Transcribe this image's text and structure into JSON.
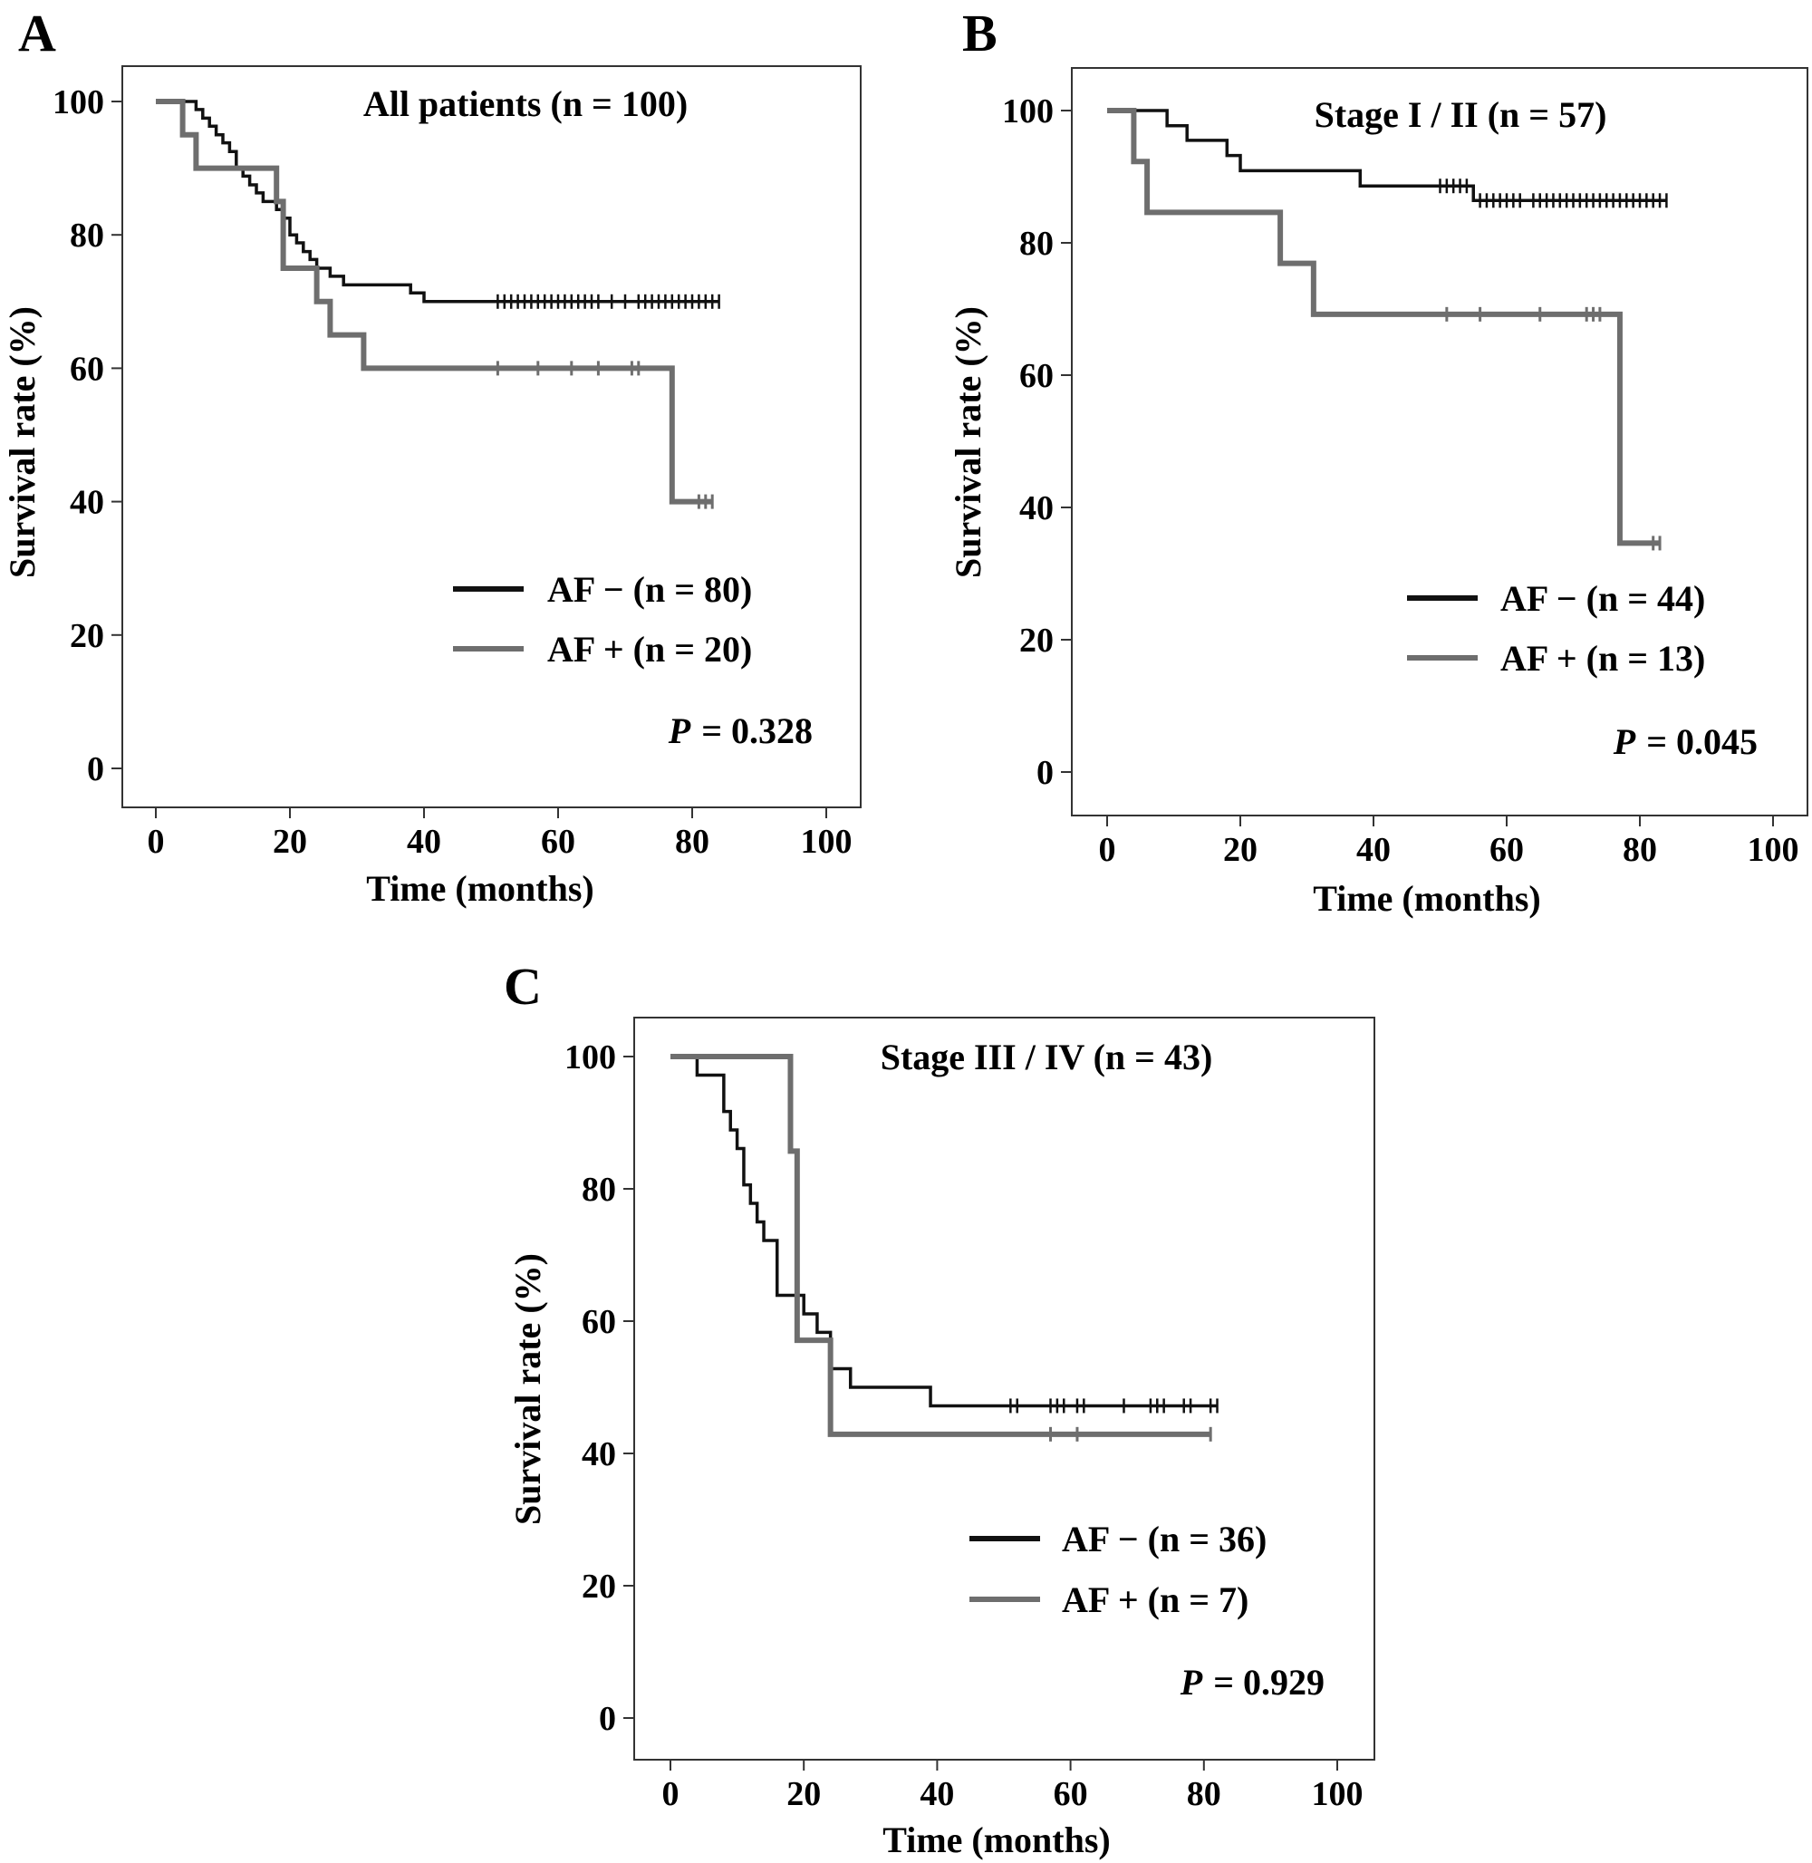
{
  "figure": {
    "panels": [
      {
        "letter": "A",
        "title": "All patients (n = 100)",
        "xlabel": "Time (months)",
        "ylabel": "Survival rate (%)",
        "legend": [
          "AF − (n = 80)",
          "AF + (n = 20)"
        ],
        "p_label": "P",
        "p_value": "= 0.328"
      },
      {
        "letter": "B",
        "title": "Stage I / II (n = 57)",
        "xlabel": "Time (months)",
        "ylabel": "Survival rate (%)",
        "legend": [
          "AF − (n = 44)",
          "AF + (n = 13)"
        ],
        "p_label": "P",
        "p_value": "= 0.045"
      },
      {
        "letter": "C",
        "title": "Stage III / IV (n = 43)",
        "xlabel": "Time (months)",
        "ylabel": "Survival rate (%)",
        "legend": [
          "AF − (n = 36)",
          "AF + (n = 7)"
        ],
        "p_label": "P",
        "p_value": "= 0.929"
      }
    ]
  },
  "chart_data": [
    {
      "type": "line",
      "title": "All patients (n = 100)",
      "xlabel": "Time (months)",
      "ylabel": "Survival rate (%)",
      "xlim": [
        0,
        100
      ],
      "ylim": [
        0,
        100
      ],
      "xticks": [
        0,
        20,
        40,
        60,
        80,
        100
      ],
      "yticks": [
        0,
        20,
        40,
        60,
        80,
        100
      ],
      "grid": false,
      "legend_position": "bottom-right",
      "series": [
        {
          "name": "AF − (n = 80)",
          "color": "#111111",
          "steps": [
            [
              0,
              100
            ],
            [
              6,
              98.8
            ],
            [
              7,
              97.5
            ],
            [
              8,
              96.3
            ],
            [
              9,
              95
            ],
            [
              10,
              93.8
            ],
            [
              11,
              92.5
            ],
            [
              12,
              90
            ],
            [
              13,
              88.8
            ],
            [
              14,
              87.5
            ],
            [
              15,
              86.3
            ],
            [
              16,
              85
            ],
            [
              18,
              83.8
            ],
            [
              19,
              82.5
            ],
            [
              20,
              80
            ],
            [
              21,
              78.8
            ],
            [
              22,
              77.5
            ],
            [
              23,
              76.3
            ],
            [
              24,
              75
            ],
            [
              26,
              73.8
            ],
            [
              28,
              72.5
            ],
            [
              38,
              71.3
            ],
            [
              40,
              70
            ]
          ],
          "end": 84,
          "censored": [
            51,
            52,
            53,
            54,
            55,
            56,
            57,
            58,
            59,
            60,
            61,
            62,
            63,
            64,
            65,
            66,
            68,
            70,
            72,
            73,
            74,
            75,
            76,
            77,
            78,
            79,
            80,
            81,
            82,
            83,
            84
          ]
        },
        {
          "name": "AF + (n = 20)",
          "color": "#6e6e6e",
          "steps": [
            [
              0,
              100
            ],
            [
              4,
              95
            ],
            [
              6,
              90
            ],
            [
              13,
              90
            ],
            [
              18,
              85
            ],
            [
              19,
              75
            ],
            [
              24,
              70
            ],
            [
              26,
              65
            ],
            [
              31,
              60
            ],
            [
              77,
              40
            ]
          ],
          "end": 83,
          "censored": [
            51,
            57,
            62,
            66,
            71,
            72,
            81,
            82,
            83
          ]
        }
      ],
      "annotations": [
        "P = 0.328"
      ]
    },
    {
      "type": "line",
      "title": "Stage I / II (n = 57)",
      "xlabel": "Time (months)",
      "ylabel": "Survival rate (%)",
      "xlim": [
        0,
        100
      ],
      "ylim": [
        0,
        100
      ],
      "xticks": [
        0,
        20,
        40,
        60,
        80,
        100
      ],
      "yticks": [
        0,
        20,
        40,
        60,
        80,
        100
      ],
      "grid": false,
      "legend_position": "bottom-right",
      "series": [
        {
          "name": "AF − (n = 44)",
          "color": "#111111",
          "steps": [
            [
              0,
              100
            ],
            [
              9,
              97.7
            ],
            [
              12,
              95.5
            ],
            [
              18,
              93.2
            ],
            [
              20,
              90.9
            ],
            [
              38,
              88.6
            ],
            [
              55,
              86.4
            ]
          ],
          "end": 84,
          "censored": [
            50,
            51,
            52,
            53,
            54,
            56,
            57,
            58,
            59,
            60,
            61,
            62,
            64,
            65,
            66,
            67,
            68,
            69,
            70,
            71,
            72,
            73,
            74,
            75,
            76,
            77,
            78,
            79,
            80,
            81,
            82,
            83,
            84
          ]
        },
        {
          "name": "AF + (n = 13)",
          "color": "#6e6e6e",
          "steps": [
            [
              0,
              100
            ],
            [
              4,
              92.3
            ],
            [
              6,
              84.6
            ],
            [
              26,
              76.9
            ],
            [
              31,
              69.2
            ],
            [
              77,
              34.6
            ]
          ],
          "end": 83,
          "censored": [
            51,
            56,
            65,
            72,
            73,
            74,
            82,
            83
          ]
        }
      ],
      "annotations": [
        "P = 0.045"
      ]
    },
    {
      "type": "line",
      "title": "Stage III / IV (n = 43)",
      "xlabel": "Time (months)",
      "ylabel": "Survival rate (%)",
      "xlim": [
        0,
        100
      ],
      "ylim": [
        0,
        100
      ],
      "xticks": [
        0,
        20,
        40,
        60,
        80,
        100
      ],
      "yticks": [
        0,
        20,
        40,
        60,
        80,
        100
      ],
      "grid": false,
      "legend_position": "bottom-right",
      "series": [
        {
          "name": "AF − (n = 36)",
          "color": "#111111",
          "steps": [
            [
              0,
              100
            ],
            [
              4,
              97.2
            ],
            [
              8,
              91.7
            ],
            [
              9,
              88.9
            ],
            [
              10,
              86.1
            ],
            [
              11,
              80.6
            ],
            [
              12,
              77.8
            ],
            [
              13,
              75
            ],
            [
              14,
              72.2
            ],
            [
              16,
              63.9
            ],
            [
              20,
              61.1
            ],
            [
              22,
              58.3
            ],
            [
              24,
              52.8
            ],
            [
              27,
              50
            ],
            [
              39,
              47.2
            ]
          ],
          "end": 82,
          "censored": [
            51,
            52,
            57,
            58,
            59,
            61,
            62,
            68,
            72,
            73,
            74,
            77,
            78,
            81,
            82
          ]
        },
        {
          "name": "AF + (n = 7)",
          "color": "#6e6e6e",
          "steps": [
            [
              0,
              100
            ],
            [
              18,
              85.7
            ],
            [
              19,
              57.1
            ],
            [
              24,
              42.9
            ]
          ],
          "end": 81,
          "censored": [
            57,
            61,
            81
          ]
        }
      ],
      "annotations": [
        "P = 0.929"
      ]
    }
  ]
}
